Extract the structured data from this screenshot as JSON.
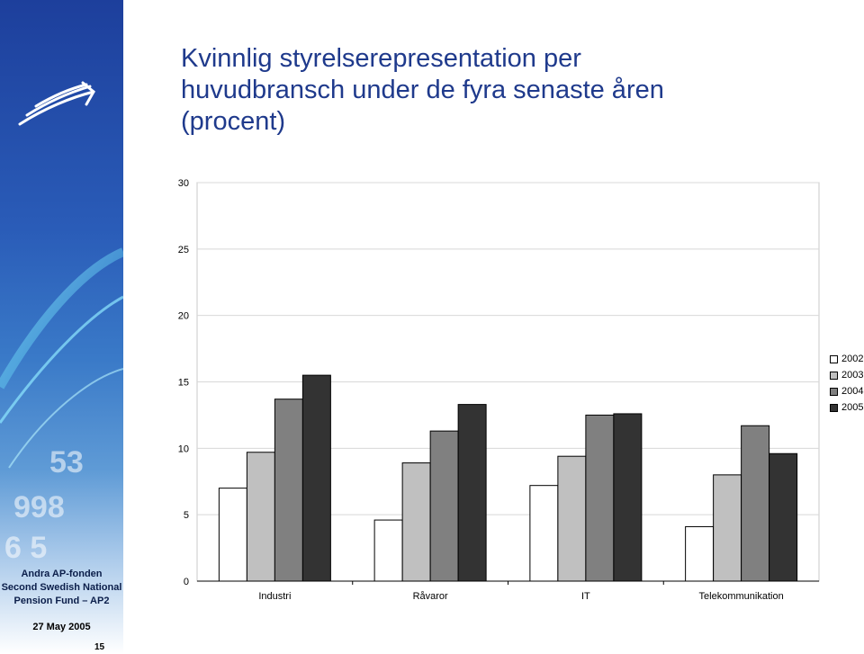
{
  "title_lines": [
    "Kvinnlig styrelserepresentation per",
    "huvudbransch under de fyra senaste åren",
    "(procent)"
  ],
  "sidebar": {
    "brand_lines": [
      "Andra AP-fonden",
      "Second Swedish National",
      "Pension Fund – AP2"
    ],
    "date": "27 May 2005",
    "page_number": "15",
    "logo_icon": "ap2-arrows-logo-icon",
    "accent_color": "#1f3a8c"
  },
  "chart_data": {
    "type": "bar",
    "categories": [
      "Industri",
      "Råvaror",
      "IT",
      "Telekommunikation"
    ],
    "series": [
      {
        "name": "2002",
        "values": [
          7.0,
          4.6,
          7.2,
          4.1
        ],
        "color": "#ffffff"
      },
      {
        "name": "2003",
        "values": [
          9.7,
          8.9,
          9.4,
          8.0
        ],
        "color": "#c0c0c0"
      },
      {
        "name": "2004",
        "values": [
          13.7,
          11.3,
          12.5,
          11.7
        ],
        "color": "#808080"
      },
      {
        "name": "2005",
        "values": [
          15.5,
          13.3,
          12.6,
          9.6
        ],
        "color": "#333333"
      }
    ],
    "ylim": [
      0,
      30
    ],
    "yticks": [
      "0",
      "5",
      "10",
      "15",
      "20",
      "25",
      "30"
    ],
    "ytick_values": [
      0,
      5,
      10,
      15,
      20,
      25,
      30
    ],
    "grid": true,
    "legend_position": "right"
  }
}
